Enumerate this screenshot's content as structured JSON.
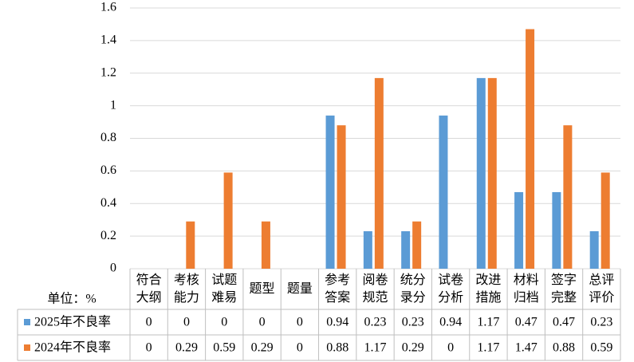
{
  "chart_data": {
    "type": "bar",
    "unit_label": "单位：%",
    "categories": [
      "符合大纲",
      "考核能力",
      "试题难易",
      "题型",
      "题量",
      "参考答案",
      "阅卷规范",
      "统分录分",
      "试卷分析",
      "改进措施",
      "材料归档",
      "签字完整",
      "总评评价"
    ],
    "series": [
      {
        "name": "2025年不良率",
        "color": "#5b9bd5",
        "values": [
          0,
          0,
          0,
          0,
          0,
          0.94,
          0.23,
          0.23,
          0.94,
          1.17,
          0.47,
          0.47,
          0.23
        ]
      },
      {
        "name": "2024年不良率",
        "color": "#ed7d31",
        "values": [
          0,
          0.29,
          0.59,
          0.29,
          0,
          0.88,
          1.17,
          0.29,
          0,
          1.17,
          1.47,
          0.88,
          0.59
        ]
      }
    ],
    "ylim": [
      0,
      1.6
    ],
    "yticks": [
      0,
      0.2,
      0.4,
      0.6,
      0.8,
      1,
      1.2,
      1.4,
      1.6
    ],
    "grid": true,
    "data_table": true
  }
}
